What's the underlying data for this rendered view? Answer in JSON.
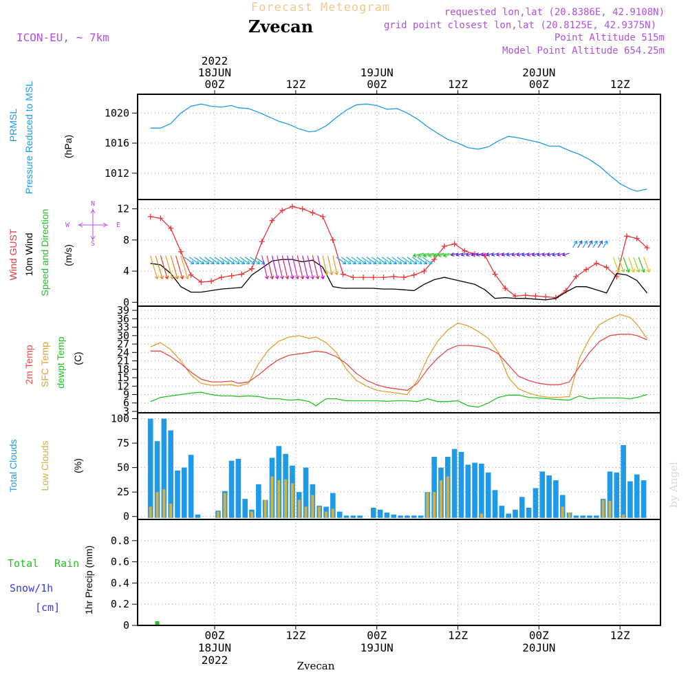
{
  "header": {
    "forecast_title": "Forecast Meteogram",
    "location": "Zvecan",
    "model": "ICON-EU, ~ 7km",
    "requested": "requested lon,lat (20.8386E, 42.9108N)",
    "grid_point": "grid point closest lon,lat (20.8125E, 42.9375N)",
    "point_altitude": "Point Altitude 515m",
    "model_altitude": "Model Point Altitude 654.25m",
    "footer_location": "Zvecan",
    "credit": "by Angel"
  },
  "time_axis": {
    "hours_total": 64,
    "top_labels": [
      {
        "h": 0,
        "lines": [
          "2022",
          "18JUN",
          "00Z"
        ]
      },
      {
        "h": 12,
        "lines": [
          "12Z"
        ]
      },
      {
        "h": 24,
        "lines": [
          "19JUN",
          "00Z"
        ]
      },
      {
        "h": 36,
        "lines": [
          "12Z"
        ]
      },
      {
        "h": 48,
        "lines": [
          "20JUN",
          "00Z"
        ]
      },
      {
        "h": 60,
        "lines": [
          "12Z"
        ]
      }
    ],
    "bottom_labels": [
      {
        "h": 0,
        "lines": [
          "00Z",
          "18JUN",
          "2022"
        ]
      },
      {
        "h": 12,
        "lines": [
          "12Z"
        ]
      },
      {
        "h": 24,
        "lines": [
          "00Z",
          "19JUN"
        ]
      },
      {
        "h": 36,
        "lines": [
          "12Z"
        ]
      },
      {
        "h": 48,
        "lines": [
          "00Z",
          "20JUN"
        ]
      },
      {
        "h": 60,
        "lines": [
          "12Z"
        ]
      }
    ]
  },
  "colors": {
    "pressure": "#1e9be8",
    "gust": "#e8353a",
    "wind": "#000000",
    "temp2m": "#e84a4a",
    "sfc_temp": "#e0a030",
    "dewpoint": "#22c022",
    "total_clouds": "#1e9be8",
    "low_clouds": "#d8b040",
    "rain": "#22c022",
    "snow": "#3a3ae0",
    "compass": "#b050e0",
    "header_orange": "#f0c890",
    "header_purple": "#b050e0"
  },
  "panel_labels": {
    "pressure": [
      "PRMSL",
      "Pressure Reduced to MSL",
      "(hPa)"
    ],
    "wind": [
      "Wind GUST",
      "10m Wind",
      "Speed and Direction",
      "(m/s)"
    ],
    "compass": {
      "n": "N",
      "s": "S",
      "w": "W",
      "e": "E"
    },
    "temp": [
      "2m Temp",
      "SFC Temp",
      "dewpt Temp",
      "(C)"
    ],
    "clouds": [
      "Total Clouds",
      "Low Clouds",
      "(%)"
    ],
    "precip": [
      "Total",
      "Rain",
      "Snow/1h",
      "[cm]",
      "1hr Precip (mm)"
    ]
  },
  "chart_data": [
    {
      "type": "line",
      "title": "PRMSL Pressure Reduced to MSL",
      "ylabel": "(hPa)",
      "ylim": [
        1008.5,
        1022.5
      ],
      "yticks": [
        1012,
        1016,
        1020
      ],
      "x": [
        -9.5,
        -8,
        -6.5,
        -5,
        -3.5,
        -2,
        -0.5,
        1,
        2.5,
        3.5,
        5,
        6.5,
        8,
        9.5,
        11,
        12.5,
        14,
        15,
        16.5,
        18,
        19.5,
        21,
        22.5,
        24,
        25.5,
        27,
        28.5,
        30,
        31.5,
        33,
        34.5,
        36,
        37.5,
        39,
        40.5,
        42,
        43.5,
        45,
        46.5,
        48,
        49.5,
        51,
        52.5,
        54,
        55.5,
        57,
        58.5,
        60,
        61.5,
        62.5,
        64
      ],
      "series": [
        {
          "name": "PRMSL",
          "values": [
            1018,
            1018,
            1018.6,
            1020,
            1020.9,
            1021.2,
            1020.9,
            1020.8,
            1021,
            1020.7,
            1020.6,
            1020.1,
            1019.5,
            1018.9,
            1018.5,
            1017.9,
            1017.5,
            1017.6,
            1018.3,
            1019.4,
            1020.4,
            1021.1,
            1021.2,
            1021,
            1020.5,
            1020.6,
            1020,
            1019.2,
            1018.2,
            1017.3,
            1016.5,
            1016,
            1015.4,
            1015.2,
            1015.5,
            1016.3,
            1016.9,
            1016.7,
            1016.4,
            1016.1,
            1015.6,
            1015.6,
            1015,
            1014.5,
            1013.8,
            1012.9,
            1011.7,
            1010.6,
            1009.9,
            1009.6,
            1009.9
          ]
        }
      ]
    },
    {
      "type": "line",
      "title": "Wind GUST / 10m Wind Speed and Direction",
      "ylabel": "(m/s)",
      "ylim": [
        -0.5,
        13.2
      ],
      "yticks": [
        0,
        4,
        8,
        12
      ],
      "x": [
        -9.5,
        -8,
        -6.5,
        -5,
        -3.5,
        -2,
        -0.5,
        1,
        2.5,
        4,
        5.5,
        7,
        8.5,
        10,
        11.5,
        13,
        14.5,
        16,
        17.5,
        19,
        20.5,
        22,
        23.5,
        25,
        26.5,
        28,
        29.5,
        31,
        32.5,
        34,
        35.5,
        37,
        38.5,
        40,
        41.5,
        43,
        44.5,
        46,
        47.5,
        49,
        50.5,
        52,
        53.5,
        55,
        56.5,
        58,
        59.5,
        61,
        62.5,
        64
      ],
      "series": [
        {
          "name": "Wind GUST",
          "values": [
            11,
            10.8,
            9.5,
            6.5,
            3.5,
            2.6,
            2.7,
            3.2,
            3.4,
            3.6,
            4.3,
            7.8,
            10.5,
            11.8,
            12.3,
            12,
            11.5,
            11,
            8,
            3.6,
            3.2,
            3.2,
            3.2,
            3.2,
            3.3,
            3.2,
            3.5,
            4,
            5.5,
            7.2,
            7.5,
            6.6,
            6.2,
            6,
            3.6,
            1.8,
            0.8,
            0.9,
            0.8,
            0.7,
            0.6,
            1.5,
            3.3,
            4.2,
            5,
            4.5,
            3.3,
            8.5,
            8.2,
            7
          ]
        },
        {
          "name": "10m Wind",
          "values": [
            5,
            4.8,
            3.7,
            2,
            1.3,
            1.3,
            1.5,
            1.7,
            1.8,
            1.9,
            3.5,
            4.4,
            5.3,
            5.5,
            5.5,
            5.2,
            5.4,
            4.5,
            2,
            1.8,
            1.8,
            1.8,
            1.8,
            1.7,
            1.7,
            1.6,
            1.5,
            2.3,
            2.9,
            3.2,
            2.9,
            2.6,
            2.3,
            1.6,
            0.5,
            0.6,
            0.5,
            0.5,
            0.4,
            0.3,
            0.5,
            1.3,
            2,
            2,
            1.6,
            1.2,
            3.7,
            3.5,
            2.8,
            1.2
          ]
        }
      ]
    },
    {
      "type": "line",
      "title": "2m Temp / SFC Temp / dewpt Temp",
      "ylabel": "(C)",
      "ylim": [
        2.5,
        40.5
      ],
      "yticks": [
        3,
        6,
        9,
        12,
        15,
        18,
        21,
        24,
        27,
        30,
        33,
        36,
        39
      ],
      "x": [
        -9.5,
        -8,
        -6.5,
        -5,
        -3.5,
        -2,
        -0.5,
        1,
        2.5,
        3.5,
        5,
        6.5,
        8,
        9.5,
        11,
        12.5,
        14,
        15,
        16.5,
        18,
        19.5,
        21,
        22.5,
        24,
        25.5,
        27,
        28.5,
        30,
        31.5,
        33,
        34.5,
        36,
        37.5,
        39,
        40.5,
        42,
        43.5,
        45,
        46.5,
        48,
        49.5,
        51,
        52.5,
        54,
        55.5,
        57,
        58.5,
        60,
        61.5,
        62.5,
        64
      ],
      "series": [
        {
          "name": "2m Temp",
          "values": [
            24.5,
            24.5,
            22.5,
            20,
            17,
            14.5,
            13.5,
            13.5,
            13.8,
            13,
            13.5,
            16,
            19,
            21.5,
            23,
            23.5,
            24,
            24.5,
            24,
            22.5,
            20,
            16.5,
            14,
            12.5,
            11.5,
            11,
            10.5,
            13,
            18,
            22,
            25,
            26.5,
            26.5,
            26.2,
            25.5,
            23.5,
            19.5,
            15.5,
            14,
            13,
            12.5,
            12.5,
            13.5,
            19,
            24,
            28,
            30,
            30.5,
            30.5,
            30,
            28.5
          ]
        },
        {
          "name": "SFC Temp",
          "values": [
            26,
            27.5,
            25,
            21,
            16,
            13,
            12.3,
            12.4,
            12.5,
            12,
            13,
            20,
            25,
            28,
            29.5,
            30,
            29,
            29.5,
            27.5,
            24,
            18,
            14,
            12,
            10.5,
            10,
            9.5,
            9,
            14,
            22,
            28,
            32,
            34.5,
            33.5,
            31.5,
            29,
            24,
            15,
            11,
            9.5,
            8.5,
            8,
            8,
            8.3,
            22,
            29,
            34,
            36,
            37.5,
            36.5,
            34,
            29
          ]
        },
        {
          "name": "dewpt Temp",
          "values": [
            6.5,
            8,
            8.5,
            9,
            9.5,
            9.8,
            9,
            8.5,
            8.5,
            8.3,
            8.5,
            8.3,
            7.5,
            7.5,
            7,
            7.2,
            6.5,
            5,
            7.5,
            7.5,
            6.8,
            6.8,
            6.8,
            6.8,
            6.6,
            6.8,
            6.8,
            6.5,
            7.5,
            6.5,
            6.5,
            6.8,
            5,
            4.5,
            6,
            8,
            8.8,
            8.8,
            8,
            7.8,
            7.5,
            7.2,
            7,
            8.5,
            7.5,
            7.8,
            7.8,
            7.8,
            7.5,
            8,
            9
          ]
        }
      ]
    },
    {
      "type": "bar",
      "title": "Total Clouds / Low Clouds",
      "ylabel": "(%)",
      "ylim": [
        -3,
        106
      ],
      "yticks": [
        0,
        25,
        50,
        75,
        100
      ],
      "x": [
        -9.5,
        -8.5,
        -7.5,
        -6.5,
        -5.5,
        -4.5,
        -3.5,
        -2.5,
        -1.5,
        -0.5,
        0.5,
        1.5,
        2.5,
        3.5,
        4.5,
        5.5,
        6.5,
        7.5,
        8.5,
        9.5,
        10.5,
        11.5,
        12.5,
        13.5,
        14.5,
        15.5,
        16.5,
        17.5,
        18.5,
        19.5,
        20.5,
        21.5,
        22.5,
        23.5,
        24.5,
        25.5,
        26.5,
        27.5,
        28.5,
        29.5,
        30.5,
        31.5,
        32.5,
        33.5,
        34.5,
        35.5,
        36.5,
        37.5,
        38.5,
        39.5,
        40.5,
        41.5,
        42.5,
        43.5,
        44.5,
        45.5,
        46.5,
        47.5,
        48.5,
        49.5,
        50.5,
        51.5,
        52.5,
        53.5,
        54.5,
        55.5,
        56.5,
        57.5,
        58.5,
        59.5,
        60.5,
        61.5,
        62.5,
        63.5
      ],
      "series": [
        {
          "name": "Total Clouds",
          "values": [
            100,
            77,
            100,
            88,
            47,
            50,
            63,
            2,
            0,
            0,
            6,
            26,
            57,
            59,
            18,
            7,
            33,
            17,
            60,
            72,
            64,
            52,
            25,
            50,
            33,
            11,
            10,
            24,
            5,
            1,
            1,
            1,
            0,
            9,
            7,
            4,
            2,
            1,
            1,
            1,
            1,
            25,
            61,
            50,
            61,
            69,
            66,
            53,
            55,
            54,
            45,
            27,
            11,
            3,
            7,
            20,
            9,
            29,
            46,
            42,
            37,
            22,
            4,
            1,
            1,
            1,
            1,
            18,
            46,
            45,
            73,
            36,
            43,
            37
          ]
        },
        {
          "name": "Low Clouds",
          "values": [
            10,
            25,
            28,
            13,
            0,
            0,
            0,
            0,
            0,
            0,
            5,
            24,
            0,
            0,
            0,
            5,
            0,
            17,
            41,
            37,
            38,
            34,
            17,
            10,
            22,
            10,
            5,
            8,
            0,
            0,
            0,
            0,
            0,
            0,
            0,
            0,
            0,
            0,
            0,
            0,
            0,
            25,
            25,
            37,
            41,
            0,
            0,
            0,
            0,
            3,
            0,
            0,
            0,
            0,
            0,
            0,
            0,
            0,
            0,
            0,
            0,
            10,
            4,
            0,
            0,
            0,
            0,
            17,
            16,
            0,
            2,
            0,
            0,
            0
          ]
        }
      ]
    },
    {
      "type": "bar",
      "title": "1hr Precip (mm)",
      "ylabel": "1hr Precip (mm)",
      "ylim": [
        0,
        1.0
      ],
      "yticks": [
        0,
        0.2,
        0.4,
        0.6,
        0.8
      ],
      "x": [
        -8.5
      ],
      "series": [
        {
          "name": "Total Rain",
          "values": [
            0.02
          ]
        }
      ]
    }
  ]
}
